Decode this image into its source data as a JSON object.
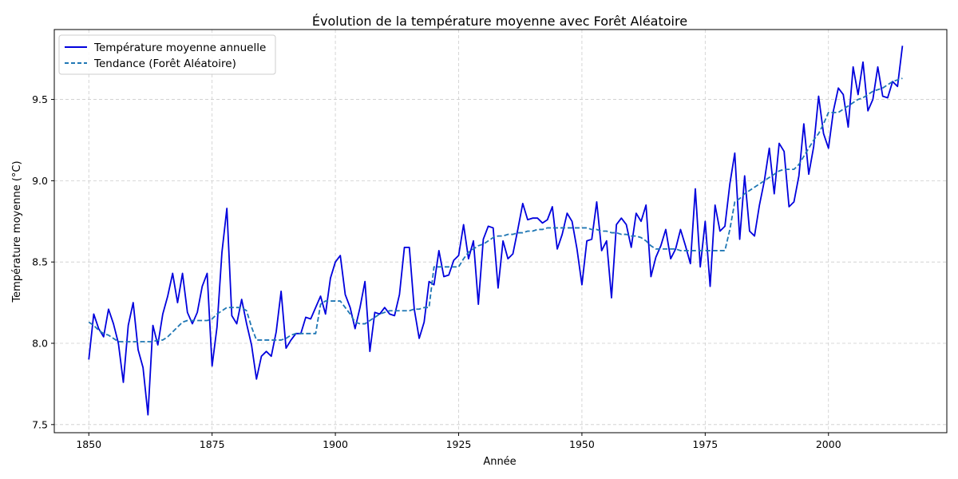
{
  "chart_data": {
    "type": "line",
    "title": "Évolution de la température moyenne avec Forêt Aléatoire",
    "xlabel": "Année",
    "ylabel": "Température moyenne (°C)",
    "xlim": [
      1843,
      2024
    ],
    "ylim": [
      7.45,
      9.93
    ],
    "xticks": [
      1850,
      1875,
      1900,
      1925,
      1950,
      1975,
      2000
    ],
    "yticks": [
      7.5,
      8.0,
      8.5,
      9.0,
      9.5
    ],
    "ytick_labels": [
      "7.5",
      "8.0",
      "8.5",
      "9.0",
      "9.5"
    ],
    "grid": true,
    "legend_position": "top-left",
    "x": [
      1850,
      1851,
      1852,
      1853,
      1854,
      1855,
      1856,
      1857,
      1858,
      1859,
      1860,
      1861,
      1862,
      1863,
      1864,
      1865,
      1866,
      1867,
      1868,
      1869,
      1870,
      1871,
      1872,
      1873,
      1874,
      1875,
      1876,
      1877,
      1878,
      1879,
      1880,
      1881,
      1882,
      1883,
      1884,
      1885,
      1886,
      1887,
      1888,
      1889,
      1890,
      1891,
      1892,
      1893,
      1894,
      1895,
      1896,
      1897,
      1898,
      1899,
      1900,
      1901,
      1902,
      1903,
      1904,
      1905,
      1906,
      1907,
      1908,
      1909,
      1910,
      1911,
      1912,
      1913,
      1914,
      1915,
      1916,
      1917,
      1918,
      1919,
      1920,
      1921,
      1922,
      1923,
      1924,
      1925,
      1926,
      1927,
      1928,
      1929,
      1930,
      1931,
      1932,
      1933,
      1934,
      1935,
      1936,
      1937,
      1938,
      1939,
      1940,
      1941,
      1942,
      1943,
      1944,
      1945,
      1946,
      1947,
      1948,
      1949,
      1950,
      1951,
      1952,
      1953,
      1954,
      1955,
      1956,
      1957,
      1958,
      1959,
      1960,
      1961,
      1962,
      1963,
      1964,
      1965,
      1966,
      1967,
      1968,
      1969,
      1970,
      1971,
      1972,
      1973,
      1974,
      1975,
      1976,
      1977,
      1978,
      1979,
      1980,
      1981,
      1982,
      1983,
      1984,
      1985,
      1986,
      1987,
      1988,
      1989,
      1990,
      1991,
      1992,
      1993,
      1994,
      1995,
      1996,
      1997,
      1998,
      1999,
      2000,
      2001,
      2002,
      2003,
      2004,
      2005,
      2006,
      2007,
      2008,
      2009,
      2010,
      2011,
      2012,
      2013,
      2014,
      2015
    ],
    "series": [
      {
        "name": "Température moyenne annuelle",
        "color": "#0000dd",
        "style": "solid",
        "values": [
          7.9,
          8.18,
          8.09,
          8.04,
          8.21,
          8.12,
          8.0,
          7.76,
          8.11,
          8.25,
          7.96,
          7.85,
          7.56,
          8.11,
          7.99,
          8.18,
          8.29,
          8.43,
          8.25,
          8.43,
          8.19,
          8.12,
          8.19,
          8.35,
          8.43,
          7.86,
          8.1,
          8.56,
          8.83,
          8.17,
          8.12,
          8.27,
          8.12,
          7.99,
          7.78,
          7.92,
          7.95,
          7.92,
          8.07,
          8.32,
          7.97,
          8.02,
          8.06,
          8.06,
          8.16,
          8.15,
          8.22,
          8.29,
          8.18,
          8.4,
          8.5,
          8.54,
          8.3,
          8.22,
          8.09,
          8.22,
          8.38,
          7.95,
          8.19,
          8.18,
          8.22,
          8.18,
          8.17,
          8.3,
          8.59,
          8.59,
          8.21,
          8.03,
          8.13,
          8.38,
          8.36,
          8.57,
          8.41,
          8.42,
          8.51,
          8.54,
          8.73,
          8.52,
          8.63,
          8.24,
          8.64,
          8.72,
          8.71,
          8.34,
          8.63,
          8.52,
          8.55,
          8.7,
          8.86,
          8.76,
          8.77,
          8.77,
          8.74,
          8.76,
          8.84,
          8.58,
          8.67,
          8.8,
          8.75,
          8.58,
          8.36,
          8.63,
          8.64,
          8.87,
          8.57,
          8.63,
          8.28,
          8.73,
          8.77,
          8.73,
          8.59,
          8.8,
          8.75,
          8.85,
          8.41,
          8.53,
          8.6,
          8.7,
          8.52,
          8.58,
          8.7,
          8.6,
          8.49,
          8.95,
          8.47,
          8.75,
          8.35,
          8.85,
          8.69,
          8.72,
          8.98,
          9.17,
          8.64,
          9.03,
          8.69,
          8.66,
          8.85,
          9.0,
          9.2,
          8.92,
          9.23,
          9.18,
          8.84,
          8.87,
          9.03,
          9.35,
          9.04,
          9.21,
          9.52,
          9.29,
          9.2,
          9.43,
          9.57,
          9.53,
          9.33,
          9.7,
          9.53,
          9.73,
          9.43,
          9.5,
          9.7,
          9.52,
          9.51,
          9.61,
          9.58,
          9.83
        ]
      },
      {
        "name": "Tendance (Forêt Aléatoire)",
        "color": "#1f77b4",
        "style": "dashed",
        "values": [
          8.13,
          8.11,
          8.08,
          8.06,
          8.05,
          8.03,
          8.01,
          8.01,
          8.01,
          8.01,
          8.01,
          8.01,
          8.01,
          8.01,
          8.02,
          8.02,
          8.04,
          8.07,
          8.1,
          8.13,
          8.14,
          8.14,
          8.14,
          8.14,
          8.14,
          8.15,
          8.18,
          8.2,
          8.22,
          8.22,
          8.22,
          8.22,
          8.2,
          8.1,
          8.02,
          8.02,
          8.02,
          8.02,
          8.02,
          8.02,
          8.03,
          8.05,
          8.06,
          8.06,
          8.06,
          8.06,
          8.06,
          8.24,
          8.26,
          8.26,
          8.26,
          8.26,
          8.22,
          8.18,
          8.13,
          8.12,
          8.12,
          8.14,
          8.16,
          8.18,
          8.19,
          8.2,
          8.2,
          8.2,
          8.2,
          8.2,
          8.21,
          8.21,
          8.22,
          8.22,
          8.47,
          8.47,
          8.47,
          8.47,
          8.47,
          8.47,
          8.52,
          8.56,
          8.58,
          8.6,
          8.61,
          8.63,
          8.65,
          8.66,
          8.66,
          8.67,
          8.67,
          8.68,
          8.68,
          8.69,
          8.69,
          8.7,
          8.7,
          8.71,
          8.71,
          8.71,
          8.71,
          8.71,
          8.71,
          8.71,
          8.71,
          8.71,
          8.7,
          8.7,
          8.69,
          8.69,
          8.68,
          8.68,
          8.67,
          8.67,
          8.66,
          8.66,
          8.65,
          8.63,
          8.6,
          8.58,
          8.58,
          8.58,
          8.58,
          8.58,
          8.57,
          8.57,
          8.57,
          8.57,
          8.57,
          8.57,
          8.57,
          8.57,
          8.57,
          8.57,
          8.7,
          8.87,
          8.89,
          8.92,
          8.94,
          8.96,
          8.98,
          9.0,
          9.02,
          9.04,
          9.06,
          9.07,
          9.07,
          9.07,
          9.1,
          9.15,
          9.2,
          9.25,
          9.29,
          9.35,
          9.42,
          9.42,
          9.42,
          9.44,
          9.46,
          9.48,
          9.5,
          9.51,
          9.53,
          9.55,
          9.56,
          9.57,
          9.59,
          9.61,
          9.62,
          9.63
        ]
      }
    ]
  },
  "colors": {
    "grid": "#cccccc",
    "axis": "#000000",
    "legend_border": "#cccccc"
  }
}
